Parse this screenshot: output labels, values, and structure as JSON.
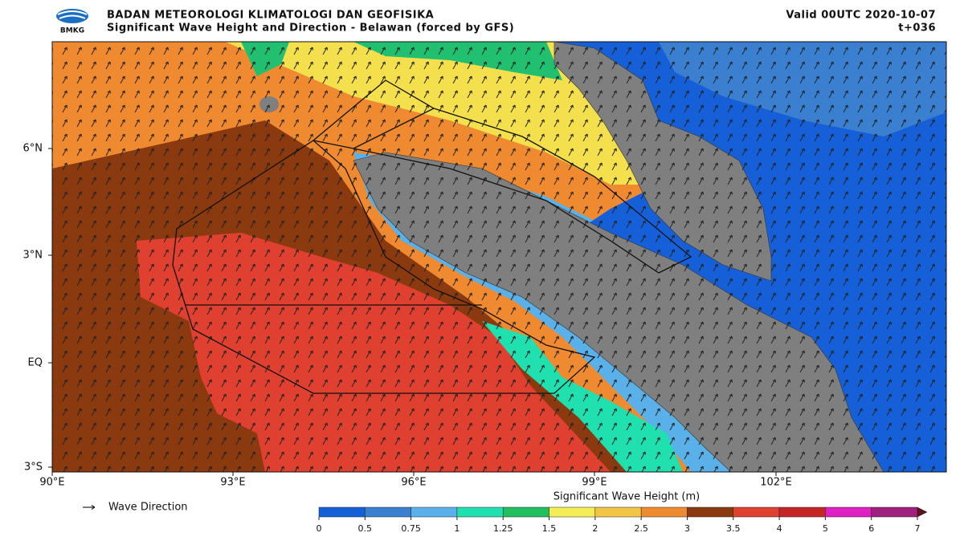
{
  "header": {
    "logo_text": "BMKG",
    "agency": "BADAN METEOROLOGI KLIMATOLOGI DAN GEOFISIKA",
    "subtitle": "Significant Wave Height and Direction - Belawan (forced by GFS)",
    "valid": "Valid 00UTC 2020-10-07",
    "lead": "t+036"
  },
  "map": {
    "xticks": [
      "90°E",
      "93°E",
      "96°E",
      "99°E",
      "102°E"
    ],
    "yticks": [
      "6°N",
      "3°N",
      "EQ",
      "3°S"
    ]
  },
  "legend": {
    "label": "Wave Direction"
  },
  "colorbar": {
    "title": "Significant Wave Height (m)",
    "ticks": [
      0,
      0.5,
      0.75,
      1,
      1.25,
      1.5,
      2,
      2.5,
      3,
      3.5,
      4,
      5,
      6,
      7
    ],
    "colors": [
      "#1560d8",
      "#3a7fd0",
      "#5ab0e8",
      "#20e0b0",
      "#20c060",
      "#f3ee55",
      "#f3c545",
      "#f08a30",
      "#8b3a10",
      "#e04030",
      "#c52525",
      "#e020c0",
      "#a02080"
    ],
    "extend_color": "#601020"
  }
}
